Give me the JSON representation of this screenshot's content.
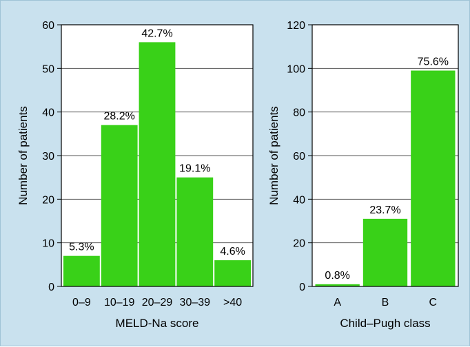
{
  "chart_data": [
    {
      "type": "bar",
      "categories": [
        "0–9",
        "10–19",
        "20–29",
        "30–39",
        ">40"
      ],
      "values": [
        7,
        37,
        56,
        25,
        6
      ],
      "data_labels": [
        "5.3%",
        "28.2%",
        "42.7%",
        "19.1%",
        "4.6%"
      ],
      "xlabel": "MELD-Na score",
      "ylabel": "Number of patients",
      "ylim": [
        0,
        60
      ],
      "yticks": [
        0,
        10,
        20,
        30,
        40,
        50,
        60
      ],
      "grid": true,
      "bar_color": "#39d118"
    },
    {
      "type": "bar",
      "categories": [
        "A",
        "B",
        "C"
      ],
      "values": [
        1,
        31,
        99
      ],
      "data_labels": [
        "0.8%",
        "23.7%",
        "75.6%"
      ],
      "xlabel": "Child–Pugh class",
      "ylabel": "Number of patients",
      "ylim": [
        0,
        120
      ],
      "yticks": [
        0,
        20,
        40,
        60,
        80,
        100,
        120
      ],
      "grid": true,
      "bar_color": "#39d118"
    }
  ]
}
